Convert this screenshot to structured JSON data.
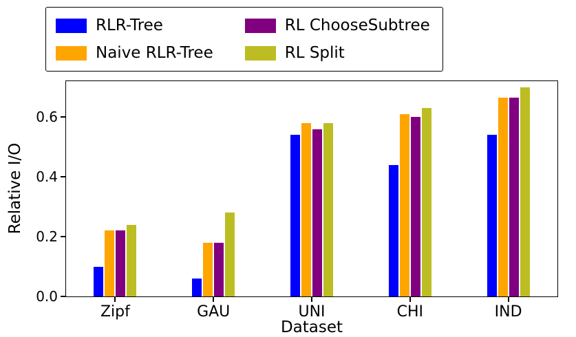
{
  "chart_data": {
    "type": "bar",
    "title": "",
    "xlabel": "Dataset",
    "ylabel": "Relative I/O",
    "categories": [
      "Zipf",
      "GAU",
      "UNI",
      "CHI",
      "IND"
    ],
    "series": [
      {
        "name": "RLR-Tree",
        "color": "#0000ff",
        "values": [
          0.1,
          0.06,
          0.54,
          0.44,
          0.54
        ]
      },
      {
        "name": "Naive RLR-Tree",
        "color": "#ffa500",
        "values": [
          0.22,
          0.18,
          0.58,
          0.61,
          0.665
        ]
      },
      {
        "name": "RL ChooseSubtree",
        "color": "#800080",
        "values": [
          0.22,
          0.18,
          0.56,
          0.6,
          0.665
        ]
      },
      {
        "name": "RL Split",
        "color": "#bcbd22",
        "values": [
          0.24,
          0.28,
          0.58,
          0.63,
          0.7
        ]
      }
    ],
    "ylim": [
      0,
      0.72
    ],
    "yticks": [
      0.0,
      0.2,
      0.4,
      0.6
    ],
    "grid": false,
    "legend_position": "top-left",
    "legend_columns": 2
  }
}
